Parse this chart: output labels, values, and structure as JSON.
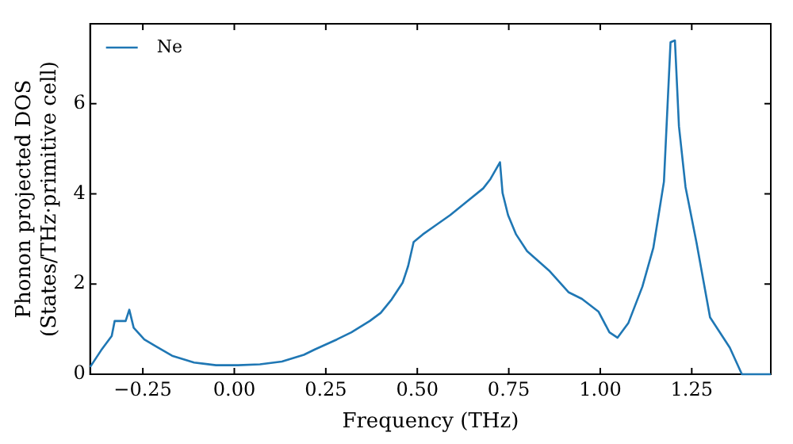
{
  "chart_data": {
    "type": "line",
    "xlabel": "Frequency (THz)",
    "ylabel": "Phonon projected DOS\n(States/THz·primitive cell)",
    "xlim": [
      -0.394,
      1.466
    ],
    "ylim": [
      0,
      7.77
    ],
    "xticks": [
      {
        "value": -0.25,
        "label": "−0.25"
      },
      {
        "value": 0,
        "label": "0.00"
      },
      {
        "value": 0.25,
        "label": "0.25"
      },
      {
        "value": 0.5,
        "label": "0.50"
      },
      {
        "value": 0.75,
        "label": "0.75"
      },
      {
        "value": 1,
        "label": "1.00"
      },
      {
        "value": 1.25,
        "label": "1.25"
      }
    ],
    "yticks": [
      0,
      2,
      4,
      6
    ],
    "grid": false,
    "legend": "top left",
    "marker": "none",
    "line_style": "solid",
    "series": [
      {
        "name": "Ne",
        "color": "#1f77b4",
        "x": [
          -0.394,
          -0.364,
          -0.335,
          -0.327,
          -0.297,
          -0.287,
          -0.275,
          -0.246,
          -0.215,
          -0.17,
          -0.11,
          -0.05,
          0.01,
          0.07,
          0.13,
          0.19,
          0.22,
          0.28,
          0.32,
          0.37,
          0.4,
          0.43,
          0.46,
          0.475,
          0.49,
          0.515,
          0.55,
          0.59,
          0.68,
          0.7,
          0.726,
          0.733,
          0.748,
          0.77,
          0.8,
          0.86,
          0.913,
          0.95,
          0.995,
          1.025,
          1.047,
          1.077,
          1.115,
          1.145,
          1.174,
          1.192,
          1.204,
          1.215,
          1.233,
          1.263,
          1.3,
          1.354,
          1.387,
          1.466
        ],
        "values": [
          0.16,
          0.53,
          0.85,
          1.18,
          1.18,
          1.43,
          1.03,
          0.77,
          0.62,
          0.41,
          0.26,
          0.2,
          0.2,
          0.22,
          0.28,
          0.43,
          0.55,
          0.77,
          0.93,
          1.18,
          1.36,
          1.66,
          2.03,
          2.4,
          2.93,
          3.1,
          3.3,
          3.53,
          4.12,
          4.33,
          4.7,
          4.02,
          3.53,
          3.1,
          2.73,
          2.3,
          1.82,
          1.67,
          1.39,
          0.93,
          0.81,
          1.14,
          1.94,
          2.8,
          4.27,
          7.36,
          7.4,
          5.5,
          4.15,
          2.92,
          1.26,
          0.59,
          0,
          0
        ]
      }
    ]
  }
}
